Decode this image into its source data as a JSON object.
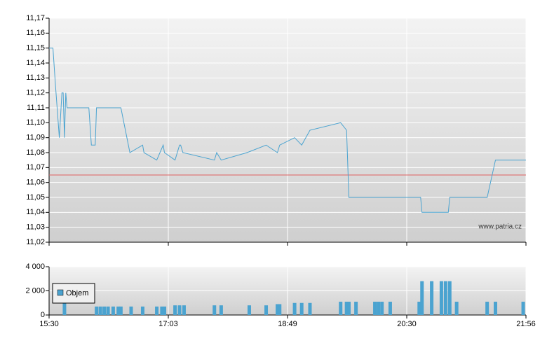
{
  "chart_data": [
    {
      "type": "line",
      "x": [
        930,
        933,
        935,
        938,
        940,
        941,
        942,
        943,
        944,
        961,
        963,
        966,
        967,
        986,
        993,
        1003,
        1004,
        1014,
        1019,
        1020,
        1029,
        1033,
        1034,
        1036,
        1064,
        1066,
        1070,
        1093,
        1110,
        1120,
        1122,
        1135,
        1141,
        1148,
        1174,
        1179,
        1181,
        1240,
        1241,
        1260,
        1261,
        1288,
        1294,
        1316
      ],
      "values": [
        11.15,
        11.15,
        11.125,
        11.09,
        11.12,
        11.12,
        11.09,
        11.12,
        11.11,
        11.11,
        11.085,
        11.085,
        11.11,
        11.11,
        11.08,
        11.085,
        11.08,
        11.075,
        11.085,
        11.08,
        11.075,
        11.085,
        11.085,
        11.08,
        11.075,
        11.08,
        11.075,
        11.08,
        11.085,
        11.08,
        11.085,
        11.09,
        11.085,
        11.095,
        11.1,
        11.095,
        11.05,
        11.05,
        11.04,
        11.04,
        11.05,
        11.05,
        11.075,
        11.075
      ],
      "color": "#4aa3d0",
      "reference_line": 11.065,
      "reference_color": "#e06060",
      "ylim": [
        11.02,
        11.17
      ],
      "yticks": [
        {
          "value": 11.02,
          "label": "11,02"
        },
        {
          "value": 11.03,
          "label": "11,03"
        },
        {
          "value": 11.04,
          "label": "11,04"
        },
        {
          "value": 11.05,
          "label": "11,05"
        },
        {
          "value": 11.06,
          "label": "11,06"
        },
        {
          "value": 11.07,
          "label": "11,07"
        },
        {
          "value": 11.08,
          "label": "11,08"
        },
        {
          "value": 11.09,
          "label": "11,09"
        },
        {
          "value": 11.1,
          "label": "11,10"
        },
        {
          "value": 11.11,
          "label": "11,11"
        },
        {
          "value": 11.12,
          "label": "11,12"
        },
        {
          "value": 11.13,
          "label": "11,13"
        },
        {
          "value": 11.14,
          "label": "11,14"
        },
        {
          "value": 11.15,
          "label": "11,15"
        },
        {
          "value": 11.16,
          "label": "11,16"
        },
        {
          "value": 11.17,
          "label": "11,17"
        }
      ],
      "watermark": "www.patria.cz",
      "grid": true
    },
    {
      "type": "bar",
      "x": [
        942,
        967,
        970,
        973,
        976,
        980,
        984,
        986,
        994,
        1003,
        1014,
        1018,
        1020,
        1029,
        1033,
        1037,
        1064,
        1070,
        1095,
        1110,
        1120,
        1122,
        1135,
        1141,
        1148,
        1174,
        1179,
        1181,
        1187,
        1203,
        1206,
        1209,
        1216,
        1239,
        1241,
        1248,
        1255,
        1258,
        1261,
        1266,
        1288,
        1294,
        1314
      ],
      "series": [
        {
          "name": "Objem",
          "color": "#4ba3d0",
          "values": [
            1000,
            700,
            700,
            700,
            700,
            700,
            700,
            700,
            700,
            700,
            700,
            700,
            700,
            800,
            800,
            800,
            800,
            800,
            800,
            800,
            900,
            900,
            1000,
            1000,
            1000,
            1100,
            1100,
            1100,
            1100,
            1100,
            1100,
            1100,
            1100,
            1100,
            2800,
            2800,
            2800,
            2800,
            2800,
            1100,
            1100,
            1100,
            1100
          ]
        }
      ],
      "ylim": [
        0,
        4000
      ],
      "yticks": [
        0,
        {
          "value": 2000,
          "label": "2 000"
        },
        {
          "value": 4000,
          "label": "4 000"
        }
      ],
      "xlim": [
        930,
        1316
      ],
      "xticks": [
        {
          "value": 930,
          "label": "15:30"
        },
        {
          "value": 1023,
          "label": "17:03"
        },
        {
          "value": 1129,
          "label": "18:49"
        },
        {
          "value": 1230,
          "label": "20:30"
        },
        {
          "value": 1316,
          "label": "21:56"
        }
      ],
      "grid": true
    }
  ]
}
